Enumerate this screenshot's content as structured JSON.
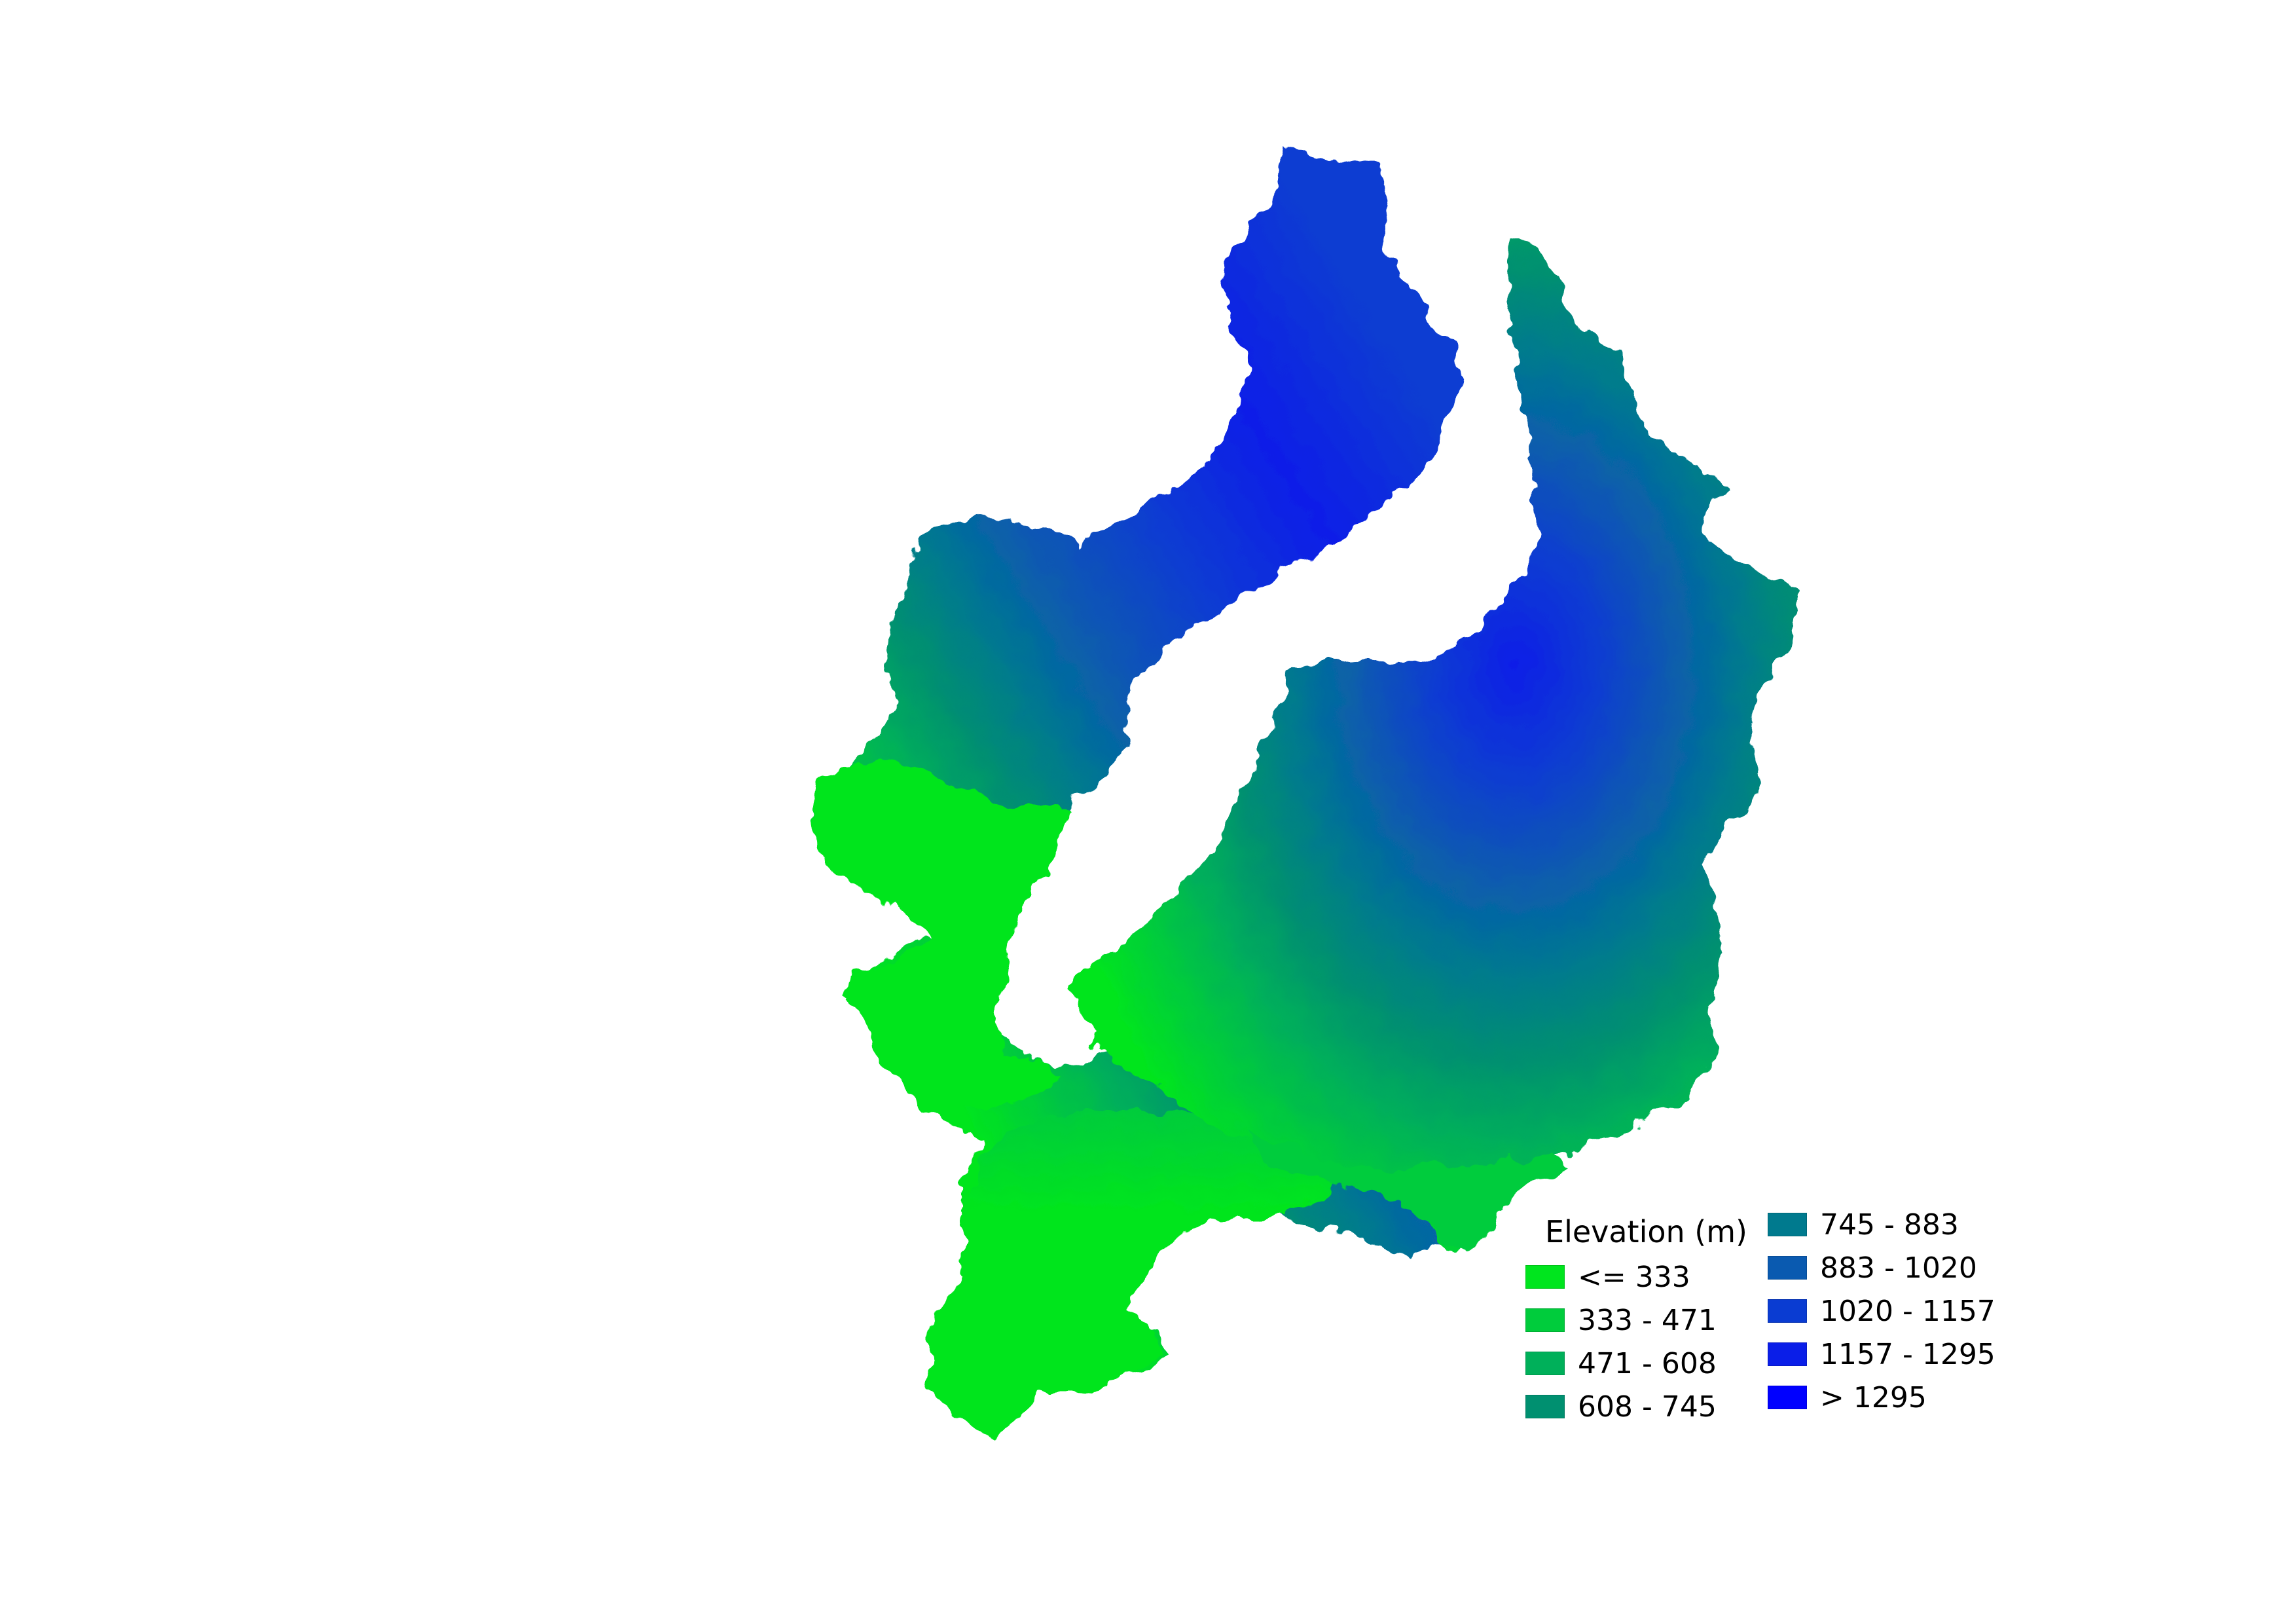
{
  "map": {
    "legend": {
      "title": "Elevation (m)",
      "classes": [
        {
          "label": "<= 333",
          "color": "#00e51e"
        },
        {
          "label": "333 - 471",
          "color": "#00cc3c"
        },
        {
          "label": "471 - 608",
          "color": "#00b05a"
        },
        {
          "label": "608 - 745",
          "color": "#009070"
        },
        {
          "label": "745 - 883",
          "color": "#007a8e"
        },
        {
          "label": "883 - 1020",
          "color": "#0a5ab0"
        },
        {
          "label": "1020 - 1157",
          "color": "#0a3cd2"
        },
        {
          "label": "1157 - 1295",
          "color": "#0a1ee8"
        },
        {
          "label": "> 1295",
          "color": "#0000ff"
        }
      ]
    }
  }
}
